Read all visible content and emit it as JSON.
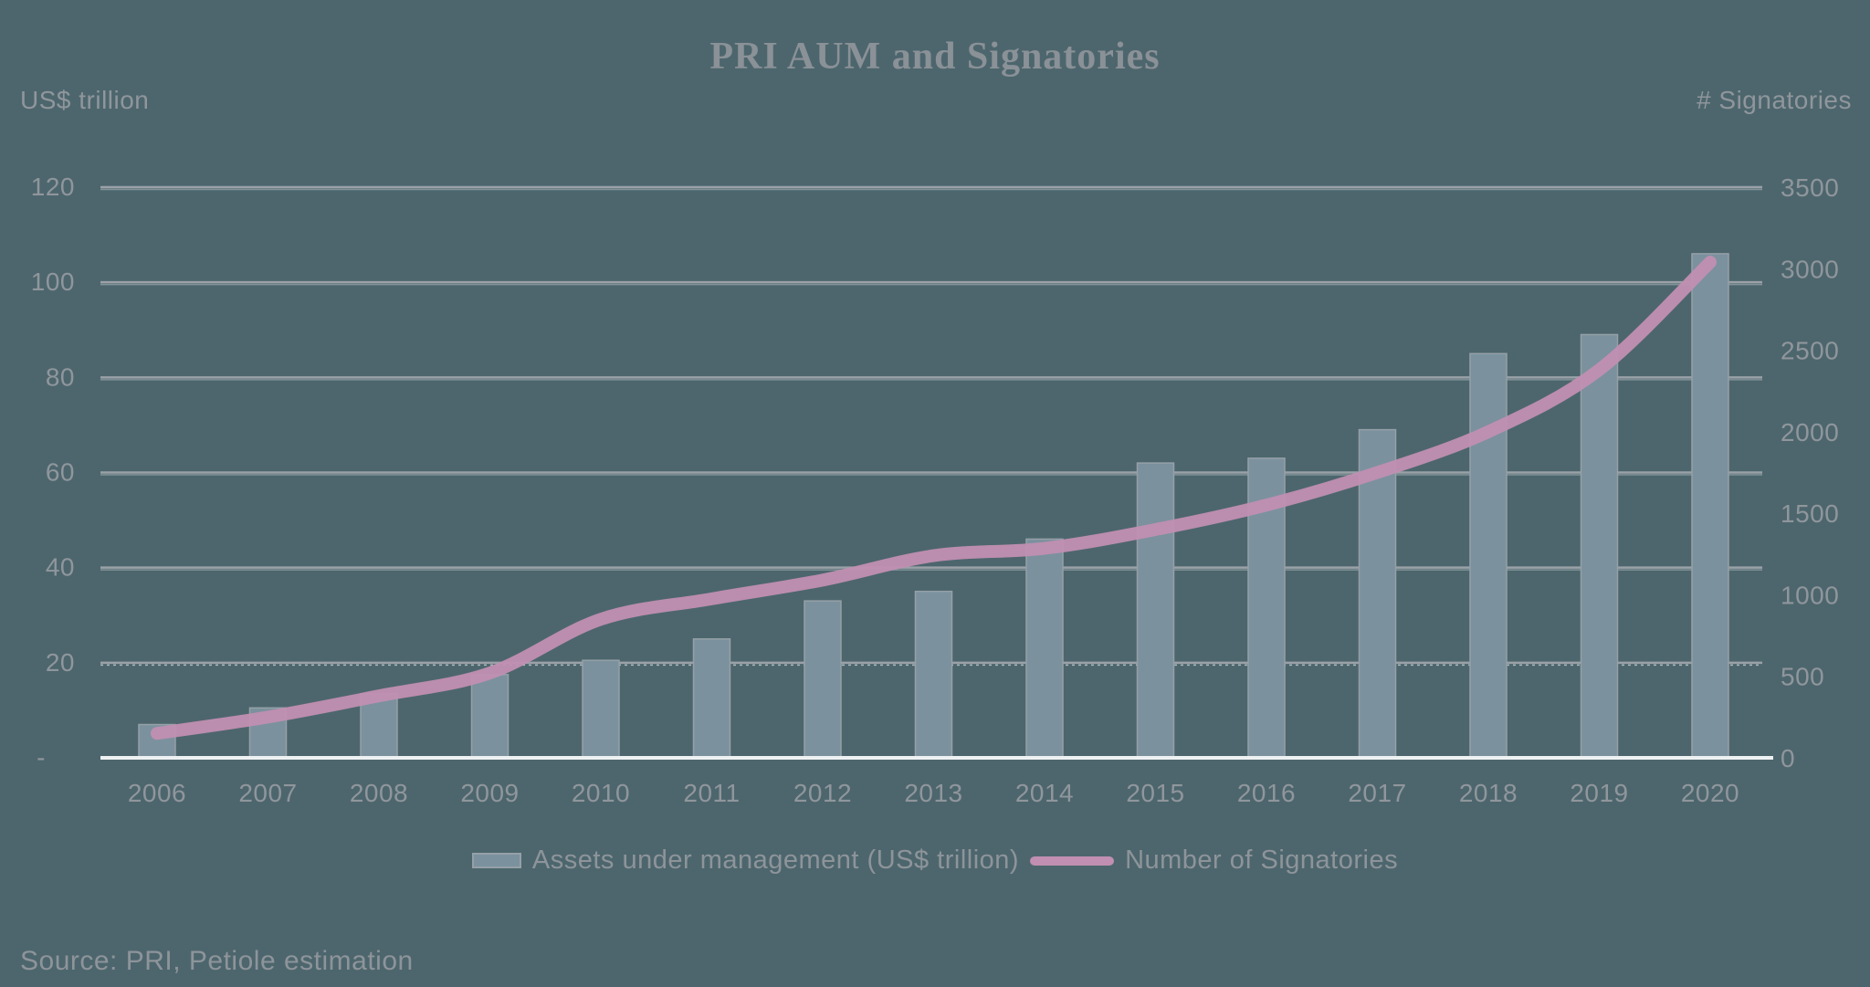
{
  "title": "PRI AUM and Signatories",
  "left_axis": {
    "unit_label": "US$ trillion",
    "tick_labels": [
      "120",
      "100",
      "80",
      "60",
      "40",
      "20"
    ],
    "zero_label": "-",
    "min": 0,
    "max": 120
  },
  "right_axis": {
    "unit_label": "# Signatories",
    "tick_labels": [
      "3500",
      "3000",
      "2500",
      "2000",
      "1500",
      "1000",
      "500",
      "0"
    ],
    "min": 0,
    "max": 3500
  },
  "legend": {
    "bar_label": "Assets under management (US$ trillion)",
    "line_label": "Number of Signatories"
  },
  "source_note": "Source: PRI, Petiole estimation",
  "colors": {
    "background": "#4d666d",
    "bar_fill": "#7b919e",
    "bar_border": "#95a0a7",
    "line": "#c18fb2",
    "grid": "#9aa1a7",
    "grid_highlight": "rgba(255,255,255,0.30)",
    "axis_line": "#eef1f2",
    "text": "#8f969c",
    "title_text": "#8a9197"
  },
  "chart_data": {
    "type": "bar+line combo",
    "title": "PRI AUM and Signatories",
    "categories": [
      "2006",
      "2007",
      "2008",
      "2009",
      "2010",
      "2011",
      "2012",
      "2013",
      "2014",
      "2015",
      "2016",
      "2017",
      "2018",
      "2019",
      "2020"
    ],
    "series": [
      {
        "name": "Assets under management (US$ trillion)",
        "type": "bar",
        "axis": "left",
        "values": [
          7,
          10.5,
          13.5,
          17.5,
          20.5,
          25,
          33,
          35,
          46,
          62,
          63,
          69,
          85,
          89,
          106
        ]
      },
      {
        "name": "Number of Signatories",
        "type": "line",
        "axis": "right",
        "values": [
          150,
          250,
          380,
          520,
          850,
          975,
          1090,
          1240,
          1285,
          1400,
          1550,
          1750,
          2000,
          2380,
          3040
        ]
      }
    ],
    "left_ylabel": "US$ trillion",
    "right_ylabel": "# Signatories",
    "left_ylim": [
      0,
      120
    ],
    "right_ylim": [
      0,
      3500
    ],
    "left_tick_step": 20,
    "right_tick_step": 500,
    "grid": "horizontal",
    "legend_position": "bottom-center"
  }
}
